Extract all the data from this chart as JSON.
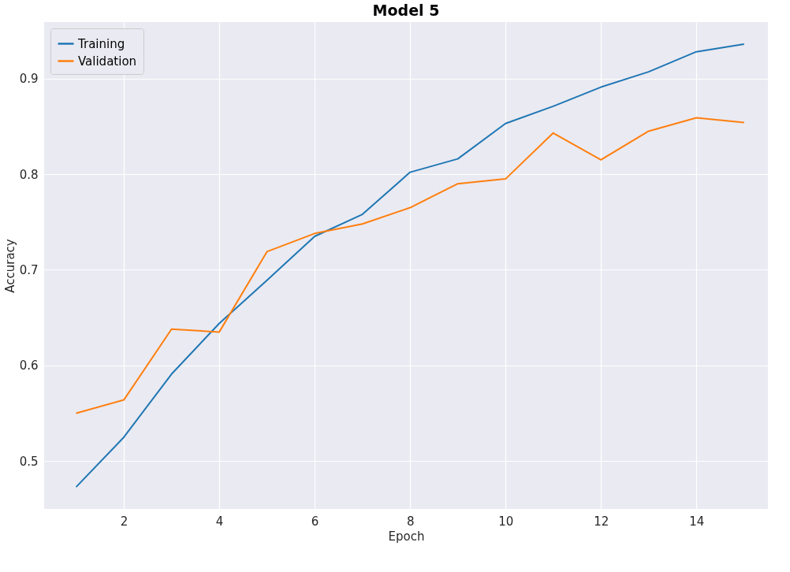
{
  "chart_data": {
    "type": "line",
    "title": "Model 5",
    "xlabel": "Epoch",
    "ylabel": "Accuracy",
    "x": [
      1,
      2,
      3,
      4,
      5,
      6,
      7,
      8,
      9,
      10,
      11,
      12,
      13,
      14,
      15
    ],
    "series": [
      {
        "name": "Training",
        "color": "#1f77b4",
        "values": [
          0.473,
          0.525,
          0.591,
          0.644,
          0.689,
          0.735,
          0.758,
          0.802,
          0.816,
          0.853,
          0.871,
          0.891,
          0.907,
          0.928,
          0.936
        ]
      },
      {
        "name": "Validation",
        "color": "#ff7f0e",
        "values": [
          0.55,
          0.564,
          0.638,
          0.635,
          0.719,
          0.738,
          0.748,
          0.765,
          0.79,
          0.795,
          0.843,
          0.815,
          0.845,
          0.859,
          0.854
        ]
      }
    ],
    "xlim": [
      0.33,
      15.5
    ],
    "ylim": [
      0.45,
      0.959
    ],
    "xticks": [
      2,
      4,
      6,
      8,
      10,
      12,
      14
    ],
    "yticks": [
      0.5,
      0.6,
      0.7,
      0.8,
      0.9
    ],
    "grid": true,
    "legend": "top left",
    "marker": "none",
    "line_style": "solid"
  }
}
